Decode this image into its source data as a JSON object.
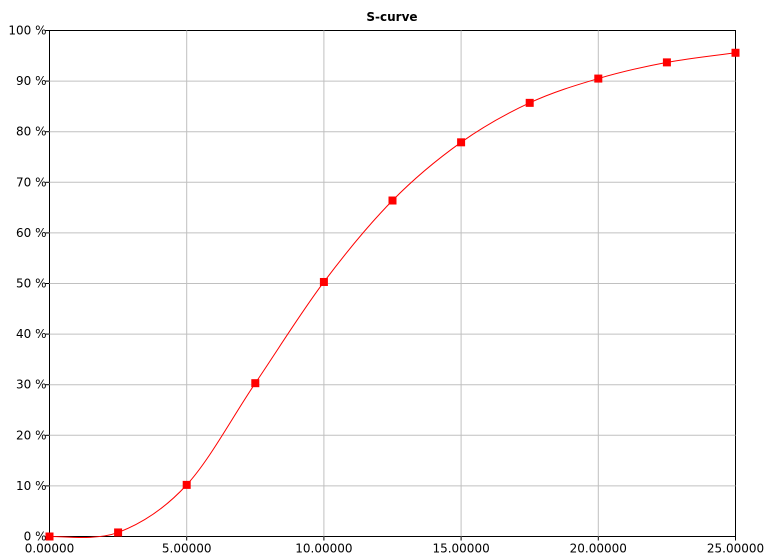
{
  "colors": {
    "series": "#ff0000",
    "grid": "#c0c0c0",
    "frame": "#000000",
    "background": "#ffffff"
  },
  "chart_data": {
    "type": "line",
    "title": "S-curve",
    "xlabel": "",
    "ylabel": "",
    "xlim": [
      0,
      25
    ],
    "ylim": [
      0,
      100
    ],
    "grid": true,
    "legend": "none",
    "x_ticks": [
      0,
      5,
      10,
      15,
      20,
      25
    ],
    "x_tick_labels": [
      "0.00000",
      "5.00000",
      "10.00000",
      "15.00000",
      "20.00000",
      "25.00000"
    ],
    "y_ticks": [
      0,
      10,
      20,
      30,
      40,
      50,
      60,
      70,
      80,
      90,
      100
    ],
    "y_tick_labels": [
      "0 %",
      "10 %",
      "20 %",
      "30 %",
      "40 %",
      "50 %",
      "60 %",
      "70 %",
      "80 %",
      "90 %",
      "100 %"
    ],
    "series": [
      {
        "marker": "square",
        "x": [
          0,
          2.5,
          5,
          7.5,
          10,
          12.5,
          15,
          17.5,
          20,
          22.5,
          25
        ],
        "y": [
          0,
          0.8,
          10.2,
          30.3,
          50.3,
          66.4,
          77.9,
          85.7,
          90.5,
          93.7,
          95.6
        ]
      }
    ]
  }
}
